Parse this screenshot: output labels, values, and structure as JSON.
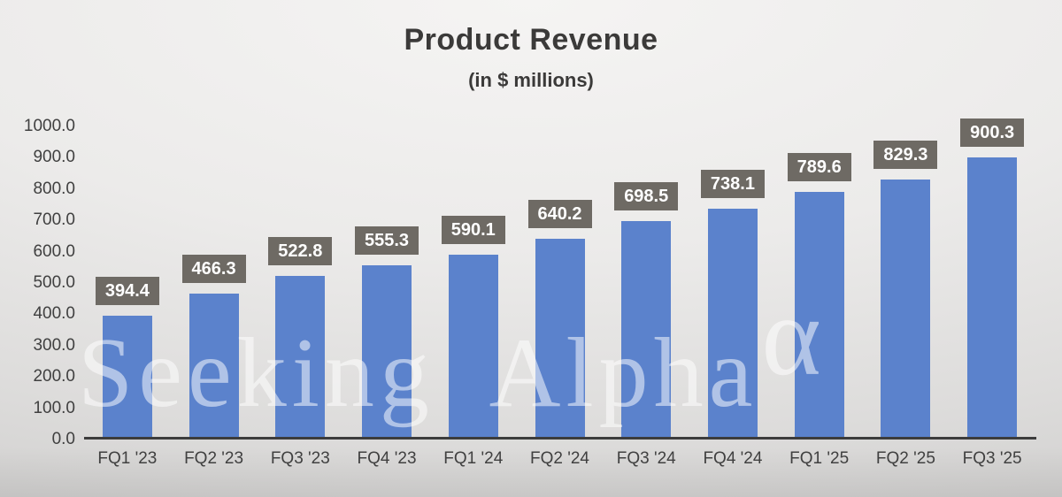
{
  "title": "Product Revenue",
  "subtitle": "(in $ millions)",
  "watermark": {
    "text": "Seeking Alpha",
    "alpha_symbol": "α"
  },
  "chart_data": {
    "type": "bar",
    "title": "Product Revenue",
    "subtitle": "(in $ millions)",
    "categories": [
      "FQ1 '23",
      "FQ2 '23",
      "FQ3 '23",
      "FQ4 '23",
      "FQ1 '24",
      "FQ2 '24",
      "FQ3 '24",
      "FQ4 '24",
      "FQ1 '25",
      "FQ2 '25",
      "FQ3 '25"
    ],
    "values": [
      394.4,
      466.3,
      522.8,
      555.3,
      590.1,
      640.2,
      698.5,
      738.1,
      789.6,
      829.3,
      900.3
    ],
    "data_labels": [
      "394.4",
      "466.3",
      "522.8",
      "555.3",
      "590.1",
      "640.2",
      "698.5",
      "738.1",
      "789.6",
      "829.3",
      "900.3"
    ],
    "xlabel": "",
    "ylabel": "",
    "ylim": [
      0,
      1000
    ],
    "ytick_step": 100,
    "ytick_labels": [
      "0.0",
      "100.0",
      "200.0",
      "300.0",
      "400.0",
      "500.0",
      "600.0",
      "700.0",
      "800.0",
      "900.0",
      "1000.0"
    ],
    "grid": false,
    "legend": "none",
    "colors": {
      "bar": "#5B82CC",
      "value_label_box": "#6E6A64",
      "value_label_text": "#FFFFFF",
      "axis_line": "#3C3C3C",
      "tick_text": "#404040",
      "title_text": "#3B3A39"
    }
  }
}
